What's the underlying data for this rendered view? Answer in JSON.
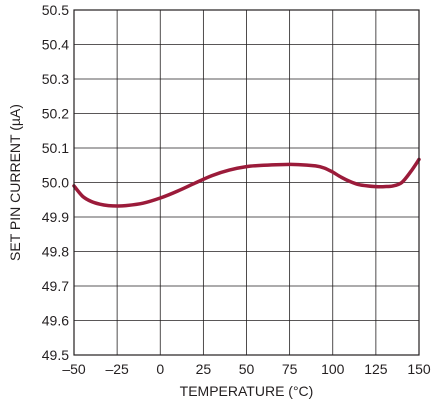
{
  "chart_data": {
    "type": "line",
    "xlabel": "TEMPERATURE (°C)",
    "ylabel": "SET PIN CURRENT (µA)",
    "xlim": [
      -50,
      150
    ],
    "ylim": [
      49.5,
      50.5
    ],
    "x_ticks": [
      "–50",
      "–25",
      "0",
      "25",
      "50",
      "75",
      "100",
      "125",
      "150"
    ],
    "y_ticks": [
      "50.5",
      "50.4",
      "50.3",
      "50.2",
      "50.1",
      "50.0",
      "49.9",
      "49.8",
      "49.7",
      "49.6",
      "49.5"
    ],
    "grid": true,
    "series_color": "#9b1b3a",
    "series": [
      {
        "x": [
          -50,
          -45,
          -40,
          -35,
          -30,
          -25,
          -20,
          -10,
          0,
          10,
          20,
          30,
          40,
          50,
          60,
          70,
          80,
          90,
          95,
          100,
          105,
          110,
          115,
          120,
          125,
          130,
          135,
          140,
          145,
          150
        ],
        "y": [
          49.99,
          49.96,
          49.945,
          49.937,
          49.933,
          49.932,
          49.933,
          49.94,
          49.955,
          49.975,
          49.998,
          50.02,
          50.036,
          50.046,
          50.05,
          50.052,
          50.052,
          50.048,
          50.042,
          50.03,
          50.015,
          50.003,
          49.994,
          49.99,
          49.988,
          49.988,
          49.99,
          50.0,
          50.03,
          50.067
        ]
      }
    ]
  }
}
